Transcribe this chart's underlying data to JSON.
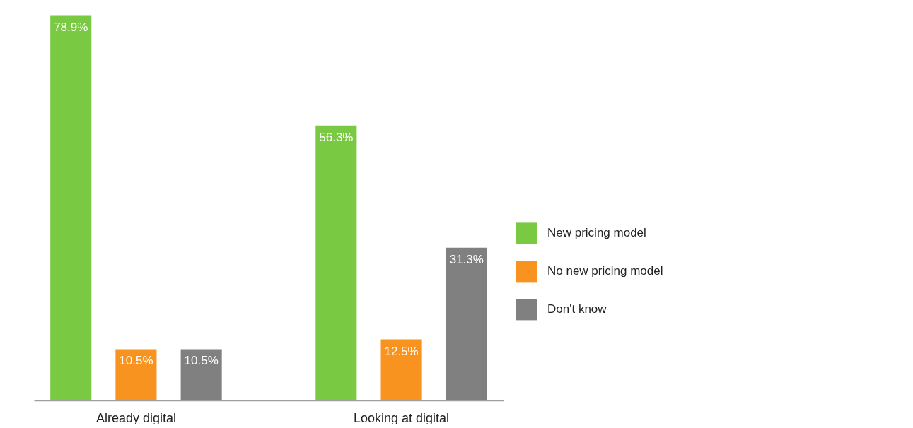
{
  "chart_data": {
    "type": "bar",
    "categories": [
      "Already digital",
      "Looking at digital"
    ],
    "series": [
      {
        "name": "New pricing model",
        "color": "#7ac943",
        "values": [
          78.9,
          56.3
        ],
        "value_labels": [
          "78.9%",
          "56.3%"
        ]
      },
      {
        "name": "No new pricing model",
        "color": "#f7931e",
        "values": [
          10.5,
          12.5
        ],
        "value_labels": [
          "10.5%",
          "12.5%"
        ]
      },
      {
        "name": "Don't know",
        "color": "#808080",
        "values": [
          10.5,
          31.3
        ],
        "value_labels": [
          "10.5%",
          "31.3%"
        ]
      }
    ],
    "legend": "right",
    "tick_labels": "x"
  }
}
